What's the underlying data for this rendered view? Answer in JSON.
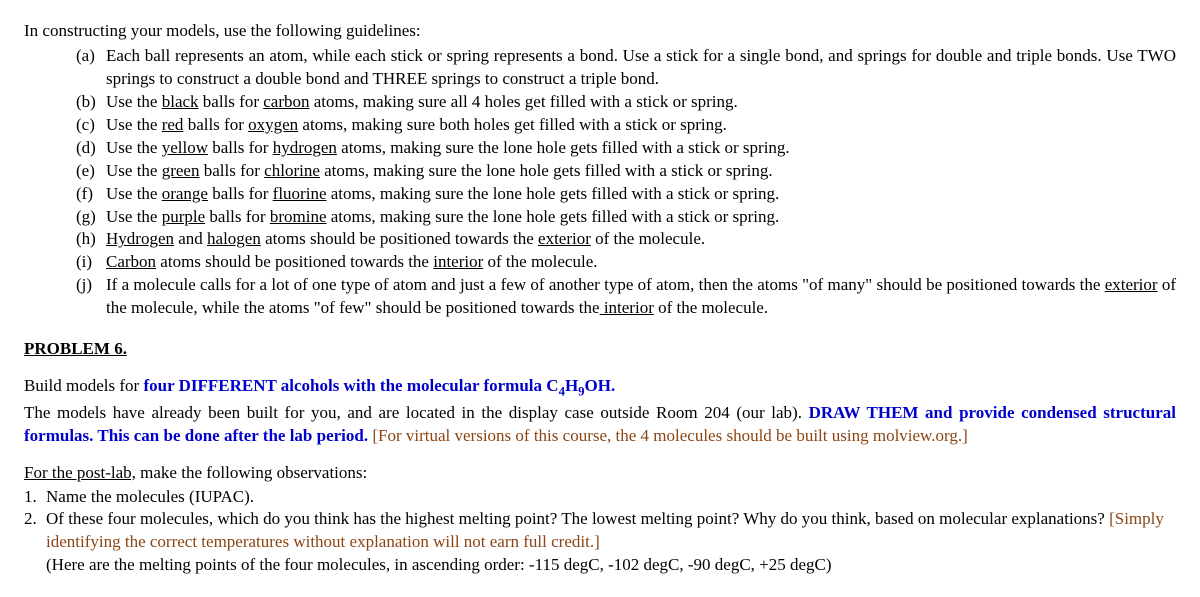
{
  "intro": "In constructing your models, use the following guidelines:",
  "items": [
    {
      "mk": "(a)",
      "pre": "Each ball represents an atom, while each stick or spring represents a bond.  Use a stick for a single bond, and springs for double and triple bonds.  Use TWO springs to construct a double bond and THREE springs to construct a triple bond."
    },
    {
      "mk": "(b)",
      "a": "Use the ",
      "u1": "black",
      "b": " balls for ",
      "u2": "carbon",
      "c": " atoms, making sure all 4 holes get filled with a stick or spring."
    },
    {
      "mk": "(c)",
      "a": "Use the ",
      "u1": "red",
      "b": " balls for ",
      "u2": "oxygen",
      "c": " atoms, making sure both holes get filled with a stick or spring."
    },
    {
      "mk": "(d)",
      "a": "Use the ",
      "u1": "yellow",
      "b": " balls for ",
      "u2": "hydrogen",
      "c": " atoms, making sure the lone hole gets filled with a stick or spring."
    },
    {
      "mk": "(e)",
      "a": "Use the ",
      "u1": "green",
      "b": " balls for ",
      "u2": "chlorine",
      "c": " atoms, making sure the lone hole gets filled with a stick or spring."
    },
    {
      "mk": "(f)",
      "a": "Use the ",
      "u1": "orange",
      "b": " balls for ",
      "u2": "fluorine",
      "c": " atoms, making sure the lone hole gets filled with a stick or spring."
    },
    {
      "mk": "(g)",
      "a": "Use the ",
      "u1": "purple",
      "b": " balls for ",
      "u2": "bromine",
      "c": " atoms, making sure the lone hole gets filled with a stick or spring."
    },
    {
      "mk": "(h)",
      "u1": "Hydrogen",
      "mid": " and ",
      "u2": "halogen",
      "c": " atoms should be positioned towards the ",
      "u3": "exterior",
      "d": " of the molecule."
    },
    {
      "mk": "(i)",
      "u1": "Carbon",
      "c": " atoms should be positioned towards the ",
      "u3": "interior",
      "d": " of the molecule."
    },
    {
      "mk": "(j)",
      "a": "If a molecule calls for a lot of one type of atom and just a few of another type of atom, then the atoms \"of many\" should be positioned towards the ",
      "u1": "exterior",
      "b": " of the molecule, while the atoms \"of few\" should be positioned towards the",
      "u2": " interior",
      "c": " of the molecule."
    }
  ],
  "problemHeading": "PROBLEM 6.",
  "line1": {
    "a": "Build models for ",
    "blue": "four DIFFERENT alcohols with the molecular formula C",
    "s1": "4",
    "mid": "H",
    "s2": "9",
    "end": "OH.",
    "period": ""
  },
  "line2": {
    "a": "The models have already been built for you, and are located in the display case outside Room 204 (our lab).  ",
    "blue": "DRAW THEM and provide condensed structural formulas.  This can be done after the lab period.",
    "brown": "  [For virtual versions of this course, the 4 molecules should be built using molview.org.]"
  },
  "post": {
    "lead_u": "For the post-lab,",
    "lead_rest": " make the following observations:",
    "n1": "1.",
    "t1": "Name the molecules (IUPAC).",
    "n2": "2.",
    "t2a": "Of these four molecules, which do you think has the highest melting point?  The lowest melting point?  Why do you think, based on molecular explanations? ",
    "t2brown": "[Simply identifying the correct temperatures without explanation will not earn full credit.]",
    "t2b": "(Here are the melting points of the four molecules, in ascending order:  -115 degC, -102 degC, -90 degC, +25 degC)"
  }
}
